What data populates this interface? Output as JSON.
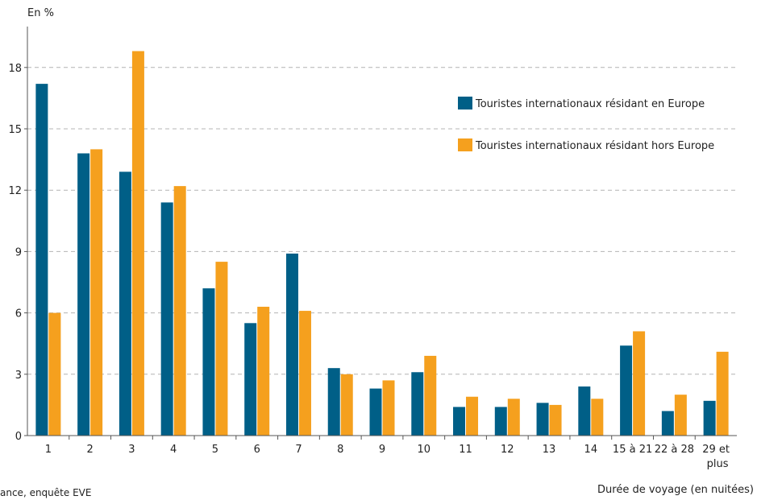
{
  "chart_data": {
    "type": "bar",
    "ylabel": "En %",
    "xlabel": "Durée de voyage (en nuitées)",
    "ylim": [
      0,
      20
    ],
    "yticks": [
      0,
      3,
      6,
      9,
      12,
      15,
      18
    ],
    "grid": true,
    "legend_position": "top-right",
    "categories": [
      "1",
      "2",
      "3",
      "4",
      "5",
      "6",
      "7",
      "8",
      "9",
      "10",
      "11",
      "12",
      "13",
      "14",
      "15 à 21",
      "22 à 28",
      "29 et plus"
    ],
    "series": [
      {
        "name": "Touristes internationaux résidant en Europe",
        "color": "#005F87",
        "values": [
          17.2,
          13.8,
          12.9,
          11.4,
          7.2,
          5.5,
          8.9,
          3.3,
          2.3,
          3.1,
          1.4,
          1.4,
          1.6,
          2.4,
          4.4,
          1.2,
          1.7
        ]
      },
      {
        "name": "Touristes internationaux résidant hors Europe",
        "color": "#F5A01E",
        "values": [
          6.0,
          14.0,
          18.8,
          12.2,
          8.5,
          6.3,
          6.1,
          3.0,
          2.7,
          3.9,
          1.9,
          1.8,
          1.5,
          1.8,
          5.1,
          2.0,
          4.1
        ]
      }
    ],
    "source": "ance, enquête EVE"
  }
}
